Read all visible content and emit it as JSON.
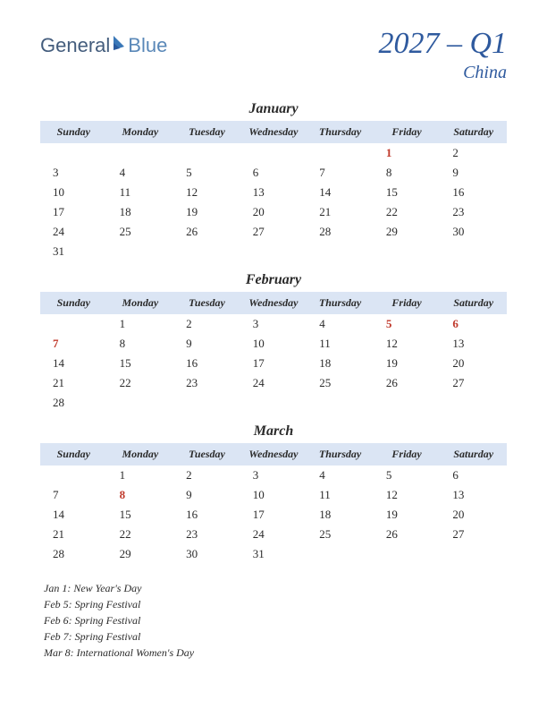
{
  "logo": {
    "text1": "General",
    "text2": "Blue"
  },
  "title": {
    "main": "2027 – Q1",
    "sub": "China"
  },
  "style": {
    "header_bg": "#dbe5f4",
    "title_color": "#2f5a9e",
    "holiday_color": "#c0392b",
    "text_color": "#2a2a2a",
    "month_title_fontsize": 16,
    "day_header_fontsize": 12,
    "cell_fontsize": 13
  },
  "day_headers": [
    "Sunday",
    "Monday",
    "Tuesday",
    "Wednesday",
    "Thursday",
    "Friday",
    "Saturday"
  ],
  "months": [
    {
      "name": "January",
      "weeks": [
        [
          {
            "d": ""
          },
          {
            "d": ""
          },
          {
            "d": ""
          },
          {
            "d": ""
          },
          {
            "d": ""
          },
          {
            "d": "1",
            "h": true
          },
          {
            "d": "2"
          }
        ],
        [
          {
            "d": "3"
          },
          {
            "d": "4"
          },
          {
            "d": "5"
          },
          {
            "d": "6"
          },
          {
            "d": "7"
          },
          {
            "d": "8"
          },
          {
            "d": "9"
          }
        ],
        [
          {
            "d": "10"
          },
          {
            "d": "11"
          },
          {
            "d": "12"
          },
          {
            "d": "13"
          },
          {
            "d": "14"
          },
          {
            "d": "15"
          },
          {
            "d": "16"
          }
        ],
        [
          {
            "d": "17"
          },
          {
            "d": "18"
          },
          {
            "d": "19"
          },
          {
            "d": "20"
          },
          {
            "d": "21"
          },
          {
            "d": "22"
          },
          {
            "d": "23"
          }
        ],
        [
          {
            "d": "24"
          },
          {
            "d": "25"
          },
          {
            "d": "26"
          },
          {
            "d": "27"
          },
          {
            "d": "28"
          },
          {
            "d": "29"
          },
          {
            "d": "30"
          }
        ],
        [
          {
            "d": "31"
          },
          {
            "d": ""
          },
          {
            "d": ""
          },
          {
            "d": ""
          },
          {
            "d": ""
          },
          {
            "d": ""
          },
          {
            "d": ""
          }
        ]
      ]
    },
    {
      "name": "February",
      "weeks": [
        [
          {
            "d": ""
          },
          {
            "d": "1"
          },
          {
            "d": "2"
          },
          {
            "d": "3"
          },
          {
            "d": "4"
          },
          {
            "d": "5",
            "h": true
          },
          {
            "d": "6",
            "h": true
          }
        ],
        [
          {
            "d": "7",
            "h": true
          },
          {
            "d": "8"
          },
          {
            "d": "9"
          },
          {
            "d": "10"
          },
          {
            "d": "11"
          },
          {
            "d": "12"
          },
          {
            "d": "13"
          }
        ],
        [
          {
            "d": "14"
          },
          {
            "d": "15"
          },
          {
            "d": "16"
          },
          {
            "d": "17"
          },
          {
            "d": "18"
          },
          {
            "d": "19"
          },
          {
            "d": "20"
          }
        ],
        [
          {
            "d": "21"
          },
          {
            "d": "22"
          },
          {
            "d": "23"
          },
          {
            "d": "24"
          },
          {
            "d": "25"
          },
          {
            "d": "26"
          },
          {
            "d": "27"
          }
        ],
        [
          {
            "d": "28"
          },
          {
            "d": ""
          },
          {
            "d": ""
          },
          {
            "d": ""
          },
          {
            "d": ""
          },
          {
            "d": ""
          },
          {
            "d": ""
          }
        ]
      ]
    },
    {
      "name": "March",
      "weeks": [
        [
          {
            "d": ""
          },
          {
            "d": "1"
          },
          {
            "d": "2"
          },
          {
            "d": "3"
          },
          {
            "d": "4"
          },
          {
            "d": "5"
          },
          {
            "d": "6"
          }
        ],
        [
          {
            "d": "7"
          },
          {
            "d": "8",
            "h": true
          },
          {
            "d": "9"
          },
          {
            "d": "10"
          },
          {
            "d": "11"
          },
          {
            "d": "12"
          },
          {
            "d": "13"
          }
        ],
        [
          {
            "d": "14"
          },
          {
            "d": "15"
          },
          {
            "d": "16"
          },
          {
            "d": "17"
          },
          {
            "d": "18"
          },
          {
            "d": "19"
          },
          {
            "d": "20"
          }
        ],
        [
          {
            "d": "21"
          },
          {
            "d": "22"
          },
          {
            "d": "23"
          },
          {
            "d": "24"
          },
          {
            "d": "25"
          },
          {
            "d": "26"
          },
          {
            "d": "27"
          }
        ],
        [
          {
            "d": "28"
          },
          {
            "d": "29"
          },
          {
            "d": "30"
          },
          {
            "d": "31"
          },
          {
            "d": ""
          },
          {
            "d": ""
          },
          {
            "d": ""
          }
        ]
      ]
    }
  ],
  "holidays": [
    "Jan 1: New Year's Day",
    "Feb 5: Spring Festival",
    "Feb 6: Spring Festival",
    "Feb 7: Spring Festival",
    "Mar 8: International Women's Day"
  ]
}
